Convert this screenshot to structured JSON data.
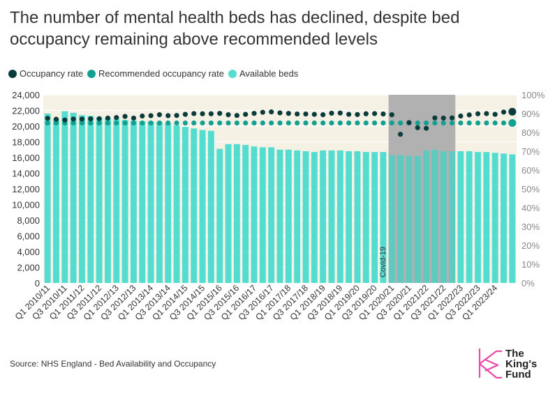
{
  "title": "The number of mental health beds has declined, despite bed occupancy remaining above recommended levels",
  "legend": [
    {
      "label": "Occupancy rate",
      "color": "#0b3b3b"
    },
    {
      "label": "Recommended occupancy rate",
      "color": "#14a090"
    },
    {
      "label": "Available beds",
      "color": "#52ddd0"
    }
  ],
  "source": "Source: NHS England - Bed Availability and Occupancy",
  "logo": {
    "line1": "The",
    "line2": "King's",
    "line3": "Fund"
  },
  "chart_data": {
    "type": "bar",
    "title": "The number of mental health beds has declined, despite bed occupancy remaining above recommended levels",
    "categories": [
      "Q1 2010/11",
      "Q2 2010/11",
      "Q3 2010/11",
      "Q4 2010/11",
      "Q1 2011/12",
      "Q2 2011/12",
      "Q3 2011/12",
      "Q4 2011/12",
      "Q1 2012/13",
      "Q2 2012/13",
      "Q3 2012/13",
      "Q4 2012/13",
      "Q1 2013/14",
      "Q2 2013/14",
      "Q3 2013/14",
      "Q4 2013/14",
      "Q1 2014/15",
      "Q2 2014/15",
      "Q3 2014/15",
      "Q4 2014/15",
      "Q1 2015/16",
      "Q2 2015/16",
      "Q3 2015/16",
      "Q4 2015/16",
      "Q1 2016/17",
      "Q2 2016/17",
      "Q3 2016/17",
      "Q4 2016/17",
      "Q1 2017/18",
      "Q2 2017/18",
      "Q3 2017/18",
      "Q4 2017/18",
      "Q1 2018/19",
      "Q2 2018/19",
      "Q3 2018/19",
      "Q4 2018/19",
      "Q1 2019/20",
      "Q2 2019/20",
      "Q3 2019/20",
      "Q4 2019/20",
      "Q1 2020/21",
      "Q2 2020/21",
      "Q3 2020/21",
      "Q4 2020/21",
      "Q1 2021/22",
      "Q2 2021/22",
      "Q3 2021/22",
      "Q4 2021/22",
      "Q1 2022/23",
      "Q2 2022/23",
      "Q3 2022/23",
      "Q4 2022/23",
      "Q1 2023/24",
      "Q2 2023/24",
      "Q3 2023/24"
    ],
    "tick_labels": [
      "Q1 2010/11",
      "Q3 2010/11",
      "Q1 2011/12",
      "Q3 2011/12",
      "Q1 2012/13",
      "Q3 2012/13",
      "Q1 2013/14",
      "Q3 2013/14",
      "Q1 2014/15",
      "Q3 2014/15",
      "Q1 2015/16",
      "Q3 2015/16",
      "Q1 2016/17",
      "Q3 2016/17",
      "Q1 2017/18",
      "Q3 2017/18",
      "Q1 2018/19",
      "Q3 2018/19",
      "Q1 2019/20",
      "Q3 2019/20",
      "Q1 2020/21",
      "Q3 2020/21",
      "Q1 2021/22",
      "Q3 2021/22",
      "Q1 2022/23",
      "Q3 2022/23",
      "Q1 2023/24"
    ],
    "series": [
      {
        "name": "Available beds",
        "type": "bar",
        "axis": "left",
        "color": "#52ddd0",
        "values": [
          21600,
          20900,
          21900,
          21700,
          21400,
          21300,
          21100,
          21000,
          20900,
          20800,
          20700,
          20600,
          20600,
          20500,
          20300,
          20100,
          19900,
          19700,
          19500,
          19400,
          17100,
          17700,
          17700,
          17600,
          17400,
          17300,
          17300,
          17000,
          17000,
          16900,
          16800,
          16700,
          16900,
          16900,
          16900,
          16800,
          16800,
          16700,
          16700,
          16700,
          16300,
          16300,
          16200,
          16200,
          16900,
          17000,
          16800,
          16800,
          16800,
          16800,
          16700,
          16700,
          16600,
          16500,
          16400
        ]
      },
      {
        "name": "Occupancy rate",
        "type": "scatter",
        "axis": "right",
        "color": "#0b3b3b",
        "unit": "%",
        "values": [
          87.5,
          87,
          86.6,
          87.1,
          87.1,
          87.2,
          87.3,
          87.6,
          87.9,
          88.5,
          87.6,
          88.7,
          88.9,
          89.4,
          88.9,
          89,
          89.6,
          90,
          89.9,
          89.9,
          90.1,
          89.4,
          89,
          89.6,
          90.1,
          90.7,
          90.9,
          90.4,
          90.1,
          89.8,
          89.8,
          89.6,
          89.4,
          90.2,
          90.3,
          89.6,
          89.5,
          89.9,
          90,
          89.8,
          89.4,
          79,
          85.2,
          82.5,
          82.2,
          87.7,
          87.6,
          87.7,
          88.7,
          89.3,
          89.9,
          90,
          89.6,
          90.8,
          91
        ]
      },
      {
        "name": "Recommended occupancy rate",
        "type": "scatter",
        "axis": "right",
        "color": "#14a090",
        "unit": "%",
        "values": [
          85,
          85,
          85,
          85,
          85,
          85,
          85,
          85,
          85,
          85,
          85,
          85,
          85,
          85,
          85,
          85,
          85,
          85,
          85,
          85,
          85,
          85,
          85,
          85,
          85,
          85,
          85,
          85,
          85,
          85,
          85,
          85,
          85,
          85,
          85,
          85,
          85,
          85,
          85,
          85,
          85,
          85,
          85,
          85,
          85,
          85,
          85,
          85,
          85,
          85,
          85,
          85,
          85,
          85,
          85
        ]
      }
    ],
    "y_left": {
      "min": 0,
      "max": 24000,
      "ticks": [
        "0",
        "2,000",
        "4,000",
        "6,000",
        "8,000",
        "10,000",
        "12,000",
        "14,000",
        "16,000",
        "18,000",
        "20,000",
        "22,000",
        "24,000"
      ]
    },
    "y_right": {
      "min": 0,
      "max": 100,
      "ticks": [
        "0%",
        "10%",
        "20%",
        "30%",
        "40%",
        "50%",
        "60%",
        "70%",
        "80%",
        "90%",
        "100%"
      ]
    },
    "annotation": {
      "label": "Covid-19",
      "start_category": "Q1 2020/21",
      "end_category": "Q4 2021/22"
    }
  }
}
